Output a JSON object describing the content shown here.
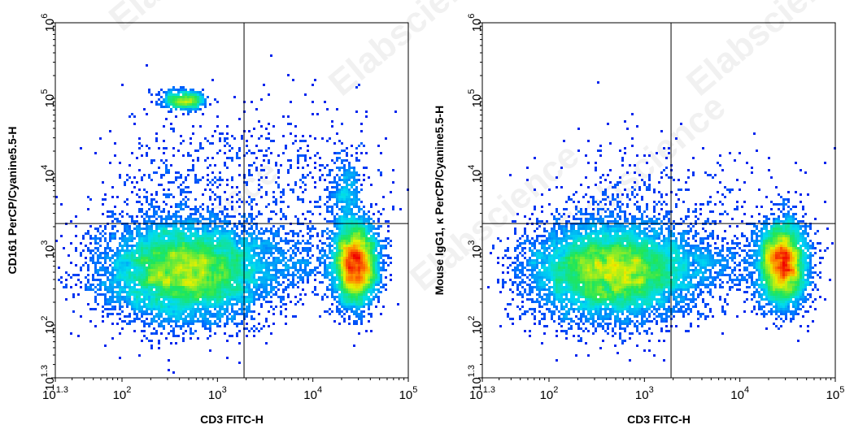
{
  "chart_data": [
    {
      "type": "scatter",
      "subtype": "flow-cytometry-density",
      "title": "",
      "xlabel": "CD3 FITC-H",
      "ylabel": "CD161 PerCP/Cyanine5.5-H",
      "x_scale": "log",
      "y_scale": "log",
      "xlim": [
        20,
        100000
      ],
      "ylim": [
        20,
        1000000
      ],
      "x_ticks": [
        {
          "value": 20,
          "base": "10",
          "exp": "1.3"
        },
        {
          "value": 100,
          "base": "10",
          "exp": "2"
        },
        {
          "value": 1000,
          "base": "10",
          "exp": "3"
        },
        {
          "value": 10000,
          "base": "10",
          "exp": "4"
        },
        {
          "value": 100000,
          "base": "10",
          "exp": "5"
        }
      ],
      "y_ticks": [
        {
          "value": 20,
          "base": "10",
          "exp": "1.3"
        },
        {
          "value": 100,
          "base": "10",
          "exp": "2"
        },
        {
          "value": 1000,
          "base": "10",
          "exp": "3"
        },
        {
          "value": 10000,
          "base": "10",
          "exp": "4"
        },
        {
          "value": 100000,
          "base": "10",
          "exp": "5"
        },
        {
          "value": 1000000,
          "base": "10",
          "exp": "6"
        }
      ],
      "quadrant_gate": {
        "x": 1900,
        "y": 2200
      },
      "populations": [
        {
          "x_center": 450,
          "y_center": 520,
          "x_spread": 0.42,
          "y_spread": 0.33,
          "count": 9000
        },
        {
          "x_center": 28000,
          "y_center": 650,
          "x_spread": 0.12,
          "y_spread": 0.28,
          "count": 4500
        },
        {
          "x_center": 450,
          "y_center": 95000,
          "x_spread": 0.12,
          "y_spread": 0.06,
          "count": 550
        },
        {
          "x_center": 22000,
          "y_center": 5500,
          "x_spread": 0.09,
          "y_spread": 0.25,
          "count": 350
        },
        {
          "x_center": 6000,
          "y_center": 8000,
          "x_spread": 0.55,
          "y_spread": 0.5,
          "count": 500
        },
        {
          "x_center": 300,
          "y_center": 6000,
          "x_spread": 0.35,
          "y_spread": 0.55,
          "count": 350
        },
        {
          "x_center": 4000,
          "y_center": 700,
          "x_spread": 0.45,
          "y_spread": 0.25,
          "count": 700
        }
      ]
    },
    {
      "type": "scatter",
      "subtype": "flow-cytometry-density",
      "title": "",
      "xlabel": "CD3 FITC-H",
      "ylabel": "Mouse IgG1, κ PerCP/Cyanine5.5-H",
      "x_scale": "log",
      "y_scale": "log",
      "xlim": [
        20,
        100000
      ],
      "ylim": [
        20,
        1000000
      ],
      "x_ticks": [
        {
          "value": 20,
          "base": "10",
          "exp": "1.3"
        },
        {
          "value": 100,
          "base": "10",
          "exp": "2"
        },
        {
          "value": 1000,
          "base": "10",
          "exp": "3"
        },
        {
          "value": 10000,
          "base": "10",
          "exp": "4"
        },
        {
          "value": 100000,
          "base": "10",
          "exp": "5"
        }
      ],
      "y_ticks": [
        {
          "value": 20,
          "base": "10",
          "exp": "1.3"
        },
        {
          "value": 100,
          "base": "10",
          "exp": "2"
        },
        {
          "value": 1000,
          "base": "10",
          "exp": "3"
        },
        {
          "value": 10000,
          "base": "10",
          "exp": "4"
        },
        {
          "value": 100000,
          "base": "10",
          "exp": "5"
        },
        {
          "value": 1000000,
          "base": "10",
          "exp": "6"
        }
      ],
      "quadrant_gate": {
        "x": 1900,
        "y": 2200
      },
      "populations": [
        {
          "x_center": 450,
          "y_center": 520,
          "x_spread": 0.42,
          "y_spread": 0.32,
          "count": 9000
        },
        {
          "x_center": 28000,
          "y_center": 650,
          "x_spread": 0.13,
          "y_spread": 0.28,
          "count": 4500
        },
        {
          "x_center": 600,
          "y_center": 3500,
          "x_spread": 0.5,
          "y_spread": 0.5,
          "count": 350
        },
        {
          "x_center": 4000,
          "y_center": 600,
          "x_spread": 0.45,
          "y_spread": 0.25,
          "count": 700
        },
        {
          "x_center": 8000,
          "y_center": 3500,
          "x_spread": 0.5,
          "y_spread": 0.45,
          "count": 150
        }
      ]
    }
  ],
  "watermark": "Elabscience"
}
